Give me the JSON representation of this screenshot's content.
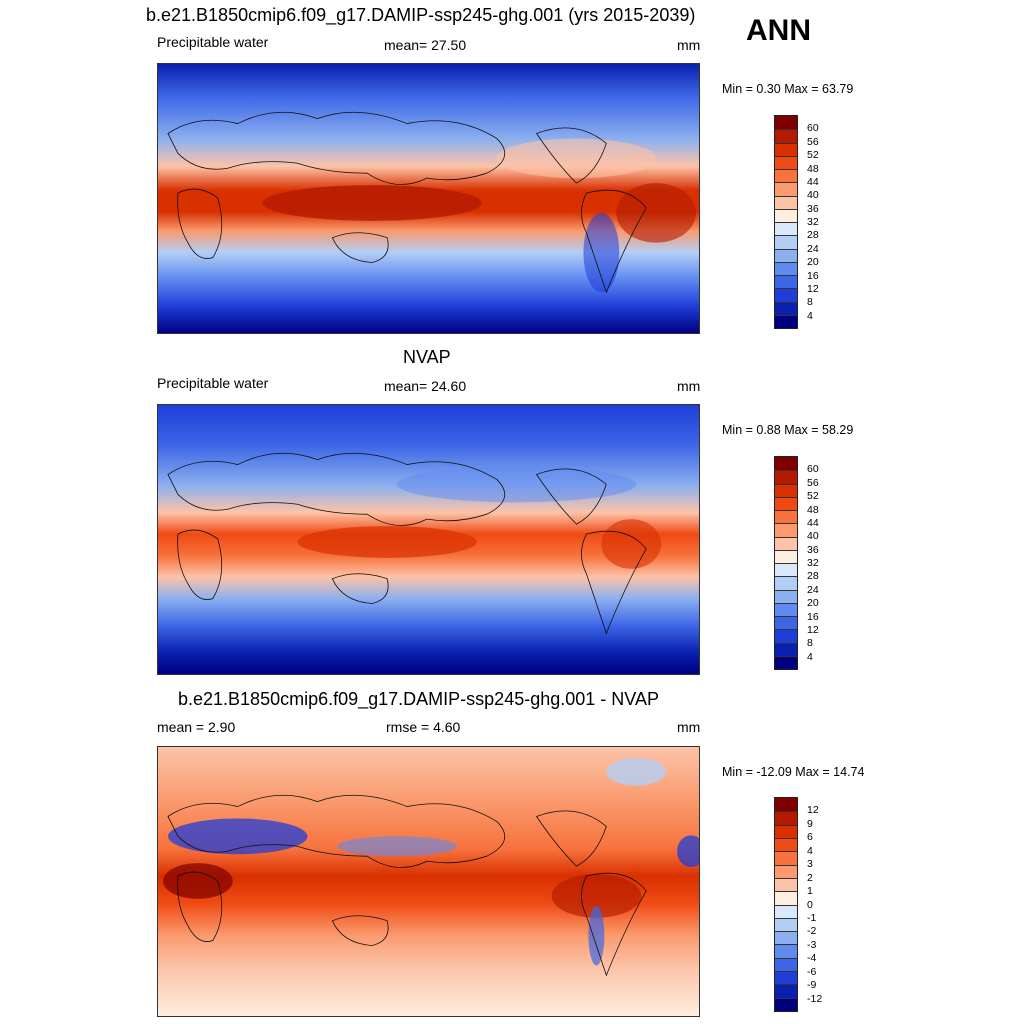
{
  "season": "ANN",
  "panels": [
    {
      "title": "b.e21.B1850cmip6.f09_g17.DAMIP-ssp245-ghg.001 (yrs 2015-2039)",
      "left_label": "Precipitable water",
      "center_label": "mean=  27.50",
      "unit": "mm",
      "minmax": "Min =   0.30 Max =  63.79",
      "colorbar_labels": [
        "60",
        "56",
        "52",
        "48",
        "44",
        "40",
        "36",
        "32",
        "28",
        "24",
        "20",
        "16",
        "12",
        "8",
        "4"
      ],
      "colors": [
        "#800000",
        "#b31a00",
        "#d93000",
        "#f04a14",
        "#f7723c",
        "#fa9a6e",
        "#fcc3a8",
        "#feeee0",
        "#d9e8fb",
        "#b3cef5",
        "#8cb0ef",
        "#5f8af0",
        "#3d66e6",
        "#1f3ed9",
        "#0a20b0",
        "#000080"
      ]
    },
    {
      "title": "NVAP",
      "left_label": "Precipitable water",
      "center_label": "mean=  24.60",
      "unit": "mm",
      "minmax": "Min =   0.88 Max =  58.29",
      "colorbar_labels": [
        "60",
        "56",
        "52",
        "48",
        "44",
        "40",
        "36",
        "32",
        "28",
        "24",
        "20",
        "16",
        "12",
        "8",
        "4"
      ],
      "colors": [
        "#800000",
        "#b31a00",
        "#d93000",
        "#f04a14",
        "#f7723c",
        "#fa9a6e",
        "#fcc3a8",
        "#feeee0",
        "#d9e8fb",
        "#b3cef5",
        "#8cb0ef",
        "#5f8af0",
        "#3d66e6",
        "#1f3ed9",
        "#0a20b0",
        "#000080"
      ]
    },
    {
      "title": "b.e21.B1850cmip6.f09_g17.DAMIP-ssp245-ghg.001 - NVAP",
      "left_label": "mean =   2.90",
      "center_label": "rmse =   4.60",
      "unit": "mm",
      "minmax": "Min = -12.09 Max =  14.74",
      "colorbar_labels": [
        "12",
        "9",
        "6",
        "4",
        "3",
        "2",
        "1",
        "0",
        "-1",
        "-2",
        "-3",
        "-4",
        "-6",
        "-9",
        "-12"
      ],
      "colors": [
        "#800000",
        "#b31a00",
        "#d93000",
        "#f04a14",
        "#f7723c",
        "#fa9a6e",
        "#fcc3a8",
        "#feeee0",
        "#d9e8fb",
        "#b3cef5",
        "#8cb0ef",
        "#5f8af0",
        "#3d66e6",
        "#1f3ed9",
        "#0a20b0",
        "#000080"
      ]
    }
  ]
}
